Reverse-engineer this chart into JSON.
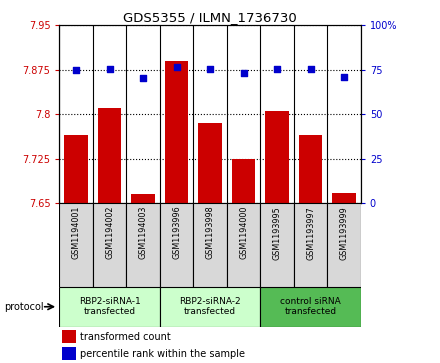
{
  "title": "GDS5355 / ILMN_1736730",
  "samples": [
    "GSM1194001",
    "GSM1194002",
    "GSM1194003",
    "GSM1193996",
    "GSM1193998",
    "GSM1194000",
    "GSM1193995",
    "GSM1193997",
    "GSM1193999"
  ],
  "bar_values": [
    7.765,
    7.81,
    7.665,
    7.89,
    7.785,
    7.725,
    7.805,
    7.765,
    7.668
  ],
  "dot_values": [
    75.0,
    75.5,
    70.5,
    76.5,
    75.5,
    73.0,
    75.5,
    75.5,
    71.0
  ],
  "ylim_left": [
    7.65,
    7.95
  ],
  "ylim_right": [
    0,
    100
  ],
  "yticks_left": [
    7.65,
    7.725,
    7.8,
    7.875,
    7.95
  ],
  "yticks_right": [
    0,
    25,
    50,
    75,
    100
  ],
  "ytick_labels_left": [
    "7.65",
    "7.725",
    "7.8",
    "7.875",
    "7.95"
  ],
  "ytick_labels_right": [
    "0",
    "25",
    "50",
    "75",
    "100%"
  ],
  "groups": [
    {
      "label": "RBP2-siRNA-1\ntransfected",
      "start": 0,
      "end": 3,
      "color": "#ccffcc"
    },
    {
      "label": "RBP2-siRNA-2\ntransfected",
      "start": 3,
      "end": 6,
      "color": "#ccffcc"
    },
    {
      "label": "control siRNA\ntransfected",
      "start": 6,
      "end": 9,
      "color": "#55bb55"
    }
  ],
  "bar_color": "#cc0000",
  "dot_color": "#0000cc",
  "bar_width": 0.7,
  "protocol_label": "protocol",
  "legend_bar_label": "transformed count",
  "legend_dot_label": "percentile rank within the sample"
}
